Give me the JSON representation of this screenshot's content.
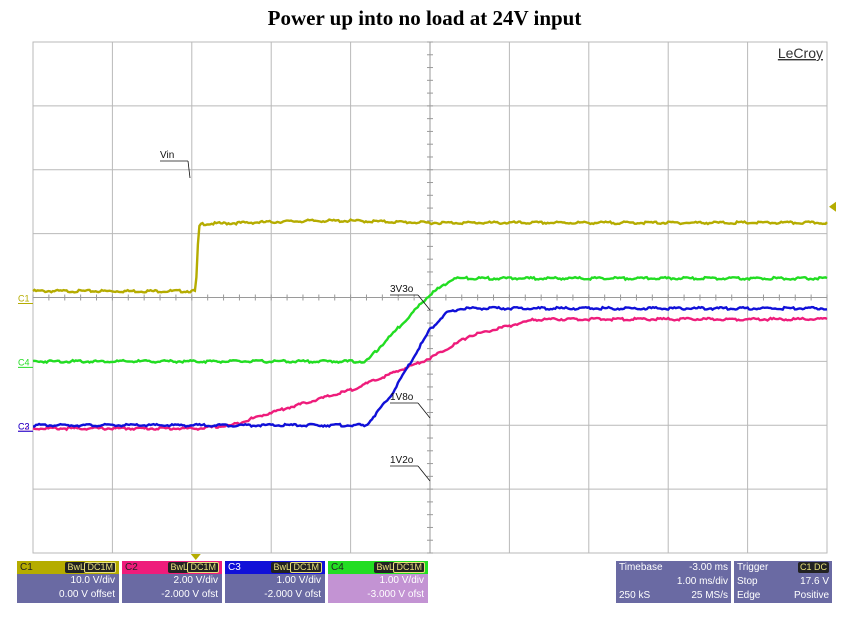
{
  "title": "Power up into no load at 24V input",
  "brand": "LeCroy",
  "colors": {
    "c1": "#b5ac00",
    "c2": "#ee1c7b",
    "c3": "#1010d8",
    "c4": "#22dd22",
    "grid": "#b9b9b9",
    "panel": "#6a6aa3"
  },
  "chart_data": {
    "type": "line",
    "title": "Power up into no load at 24V input",
    "x_units": "ms",
    "xlim": [
      -3.0,
      7.0
    ],
    "y_divisions": 8,
    "grid": true,
    "series": [
      {
        "name": "Vin",
        "channel": "C1",
        "volts_per_div": 10.0,
        "offset_v": 0.0,
        "marker_div": 4.0,
        "x": [
          -3.0,
          -0.95,
          -0.92,
          -0.9,
          0.5,
          1.0,
          2.0,
          4.0,
          7.0
        ],
        "div": [
          0.1,
          0.1,
          0.9,
          1.15,
          1.2,
          1.2,
          1.17,
          1.17,
          1.17
        ]
      },
      {
        "name": "3V3o",
        "channel": "C2",
        "volts_per_div": 2.0,
        "offset_v": -2.0,
        "marker_div": 2.0,
        "x": [
          -3.0,
          -0.9,
          -0.5,
          0.0,
          1.0,
          2.0,
          2.5,
          3.3,
          3.5,
          4.0,
          5.0,
          7.0
        ],
        "div": [
          -0.05,
          -0.05,
          0.0,
          0.2,
          0.55,
          1.05,
          1.4,
          1.65,
          1.66,
          1.66,
          1.66,
          1.66
        ]
      },
      {
        "name": "1V8o",
        "channel": "C3",
        "volts_per_div": 1.0,
        "offset_v": -2.0,
        "marker_div": 2.0,
        "x": [
          -3.0,
          1.2,
          1.3,
          1.5,
          2.0,
          2.2,
          2.4,
          2.6,
          3.0,
          4.0,
          7.0
        ],
        "div": [
          0.0,
          0.0,
          0.15,
          0.45,
          1.5,
          1.75,
          1.83,
          1.83,
          1.83,
          1.83,
          1.83
        ]
      },
      {
        "name": "1V2o",
        "channel": "C4",
        "volts_per_div": 1.0,
        "offset_v": -3.0,
        "marker_div": 3.0,
        "x": [
          -3.0,
          1.2,
          2.0,
          2.3,
          2.5,
          3.0,
          7.0
        ],
        "div": [
          0.0,
          0.0,
          1.05,
          1.3,
          1.3,
          1.3,
          1.3
        ]
      }
    ],
    "labels": [
      "Vin",
      "3V3o",
      "1V8o",
      "1V2o"
    ]
  },
  "channels": [
    {
      "id": "C1",
      "tag1": "BwL",
      "tag2": "DC1M",
      "scale": "10.0 V/div",
      "offset": "0.00 V offset",
      "bg": "#b5ac00",
      "hdrbg": "#b5ac00",
      "row1bg": "#6a6aa3",
      "row2bg": "#6a6aa3"
    },
    {
      "id": "C2",
      "tag1": "BwL",
      "tag2": "DC1M",
      "scale": "2.00 V/div",
      "offset": "-2.000 V ofst",
      "bg": "#ee1c7b",
      "hdrbg": "#ee1c7b",
      "row1bg": "#6a6aa3",
      "row2bg": "#6a6aa3"
    },
    {
      "id": "C3",
      "tag1": "BwL",
      "tag2": "DC1M",
      "scale": "1.00 V/div",
      "offset": "-2.000 V ofst",
      "bg": "#1010d8",
      "hdrbg": "#1010d8",
      "row1bg": "#6a6aa3",
      "row2bg": "#6a6aa3"
    },
    {
      "id": "C4",
      "tag1": "BwL",
      "tag2": "DC1M",
      "scale": "1.00 V/div",
      "offset": "-3.000 V ofst",
      "bg": "#22dd22",
      "hdrbg": "#22dd22",
      "row1bg": "#c393d3",
      "row2bg": "#c393d3"
    }
  ],
  "timebase": {
    "label": "Timebase",
    "delay": "-3.00 ms",
    "scale": "1.00 ms/div",
    "samples": "250 kS",
    "rate": "25 MS/s"
  },
  "trigger": {
    "label": "Trigger",
    "tag": "C1 DC",
    "mode": "Stop",
    "level": "17.6 V",
    "type": "Edge",
    "slope": "Positive"
  }
}
